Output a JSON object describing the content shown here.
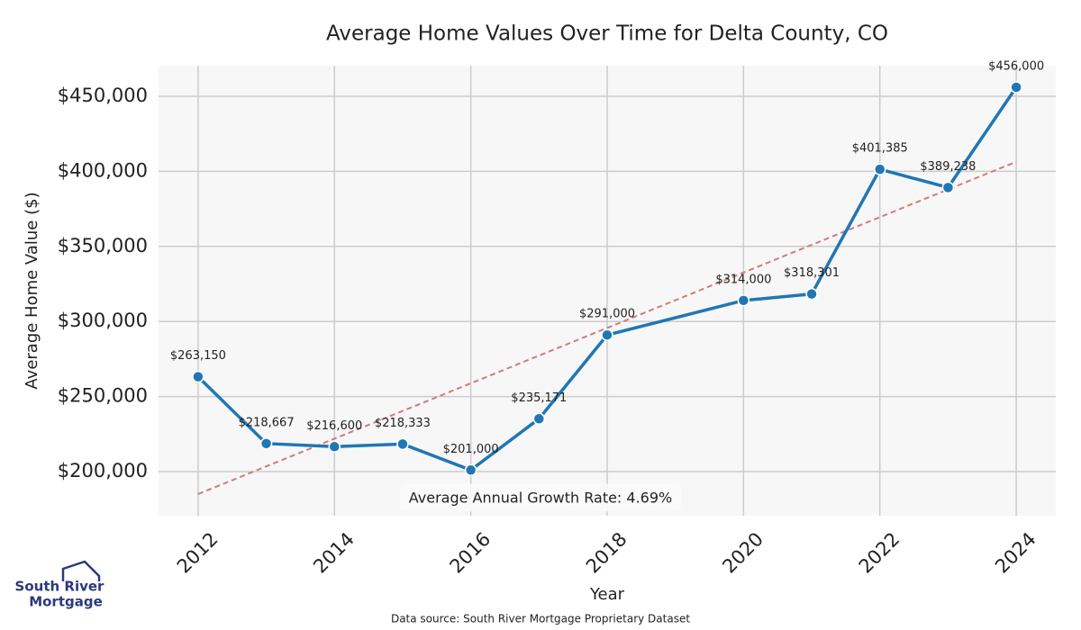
{
  "chart_data": {
    "type": "line",
    "title": "Average Home Values Over Time for Delta County, CO",
    "x_label": "Year",
    "y_label": "Average Home Value ($)",
    "x": [
      2012,
      2013,
      2014,
      2015,
      2016,
      2017,
      2018,
      2020,
      2021,
      2022,
      2023,
      2024
    ],
    "series": [
      {
        "color": "#1f77b4",
        "values": [
          263150,
          218667,
          216600,
          218333,
          201000,
          235171,
          291000,
          314000,
          318301,
          401385,
          389238,
          456000
        ],
        "value_labels": [
          "$263,150",
          "$218,667",
          "$216,600",
          "$218,333",
          "$201,000",
          "$235,171",
          "$291,000",
          "$314,000",
          "$318,301",
          "$401,385",
          "$389,238",
          "$456,000"
        ]
      }
    ],
    "trend": {
      "x": [
        2012,
        2024
      ],
      "values": [
        185000,
        406400
      ],
      "color": "#d47a7a"
    },
    "annotation": "Average Annual Growth Rate: 4.69%",
    "source": "Data source: South River Mortgage Proprietary Dataset",
    "xlim": [
      2011.42,
      2024.58
    ],
    "ylim": [
      170600,
      470400
    ],
    "xticks": [
      2012,
      2014,
      2016,
      2018,
      2020,
      2022,
      2024
    ],
    "yticks": [
      {
        "value": 200000,
        "label": "$200,000"
      },
      {
        "value": 250000,
        "label": "$250,000"
      },
      {
        "value": 300000,
        "label": "$300,000"
      },
      {
        "value": 350000,
        "label": "$350,000"
      },
      {
        "value": 400000,
        "label": "$400,000"
      },
      {
        "value": 450000,
        "label": "$450,000"
      }
    ],
    "grid": true
  },
  "logo": {
    "lines": [
      "South River",
      "Mortgage"
    ]
  }
}
